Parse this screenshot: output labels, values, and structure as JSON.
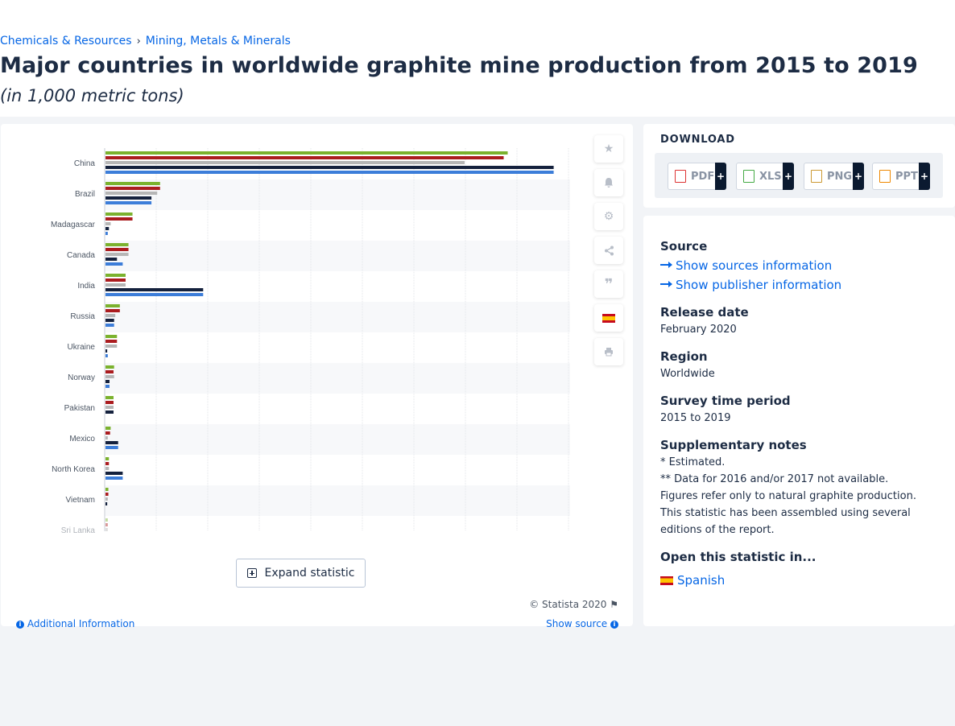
{
  "breadcrumb": {
    "item1": "Chemicals & Resources",
    "separator": "›",
    "item2": "Mining, Metals & Minerals"
  },
  "title": "Major countries in worldwide graphite mine production from 2015 to 2019",
  "subtitle": "(in 1,000 metric tons)",
  "chart_data": {
    "type": "bar",
    "orientation": "horizontal",
    "categories": [
      "China",
      "Brazil",
      "Madagascar",
      "Canada",
      "India",
      "Russia",
      "Ukraine",
      "Norway",
      "Pakistan",
      "Mexico",
      "North Korea",
      "Vietnam",
      "Sri Lanka"
    ],
    "series": [
      {
        "name": "",
        "color": "#7bb22e",
        "values": [
          700,
          95,
          47,
          40,
          35,
          25,
          20,
          15,
          14,
          9,
          6,
          5,
          4
        ]
      },
      {
        "name": "",
        "color": "#ab1c1f",
        "values": [
          693,
          95,
          47,
          40,
          35,
          25,
          20,
          14,
          14,
          8,
          6,
          5,
          4
        ]
      },
      {
        "name": "",
        "color": "#b6b6b6",
        "values": [
          625,
          90,
          9,
          40,
          35,
          17,
          20,
          15,
          14,
          4,
          6,
          4,
          4
        ]
      },
      {
        "name": "",
        "color": "#14213d",
        "values": [
          780,
          80,
          6,
          20,
          170,
          15,
          3,
          7,
          14,
          22,
          30,
          3,
          0
        ]
      },
      {
        "name": "",
        "color": "#3c7dd9",
        "values": [
          780,
          80,
          4,
          30,
          170,
          15,
          4,
          7,
          0,
          22,
          30,
          0,
          0
        ]
      }
    ],
    "xlim": [
      0,
      900
    ],
    "grid": true,
    "legend": "none"
  },
  "actions": [
    "star-icon",
    "bell-icon",
    "gear-icon",
    "share-icon",
    "quote-icon",
    "spanish-flag-icon",
    "print-icon"
  ],
  "expand_label": "Expand statistic",
  "copyright": "© Statista 2020",
  "additional_info": "Additional Information",
  "show_source": "Show source",
  "download": {
    "title": "DOWNLOAD",
    "formats": [
      "PDF",
      "XLS",
      "PNG",
      "PPT"
    ],
    "plus": "+"
  },
  "info": {
    "source_h": "Source",
    "show_sources": "Show sources information",
    "show_publisher": "Show publisher information",
    "release_h": "Release date",
    "release": "February 2020",
    "region_h": "Region",
    "region": "Worldwide",
    "survey_h": "Survey time period",
    "survey": "2015 to 2019",
    "notes_h": "Supplementary notes",
    "note1": "* Estimated.",
    "note2": "** Data for 2016 and/or 2017 not available.",
    "note3": "Figures refer only to natural graphite production.",
    "note4": "This statistic has been assembled using several",
    "note5": "editions of the report.",
    "open_h": "Open this statistic in...",
    "spanish": "Spanish"
  }
}
